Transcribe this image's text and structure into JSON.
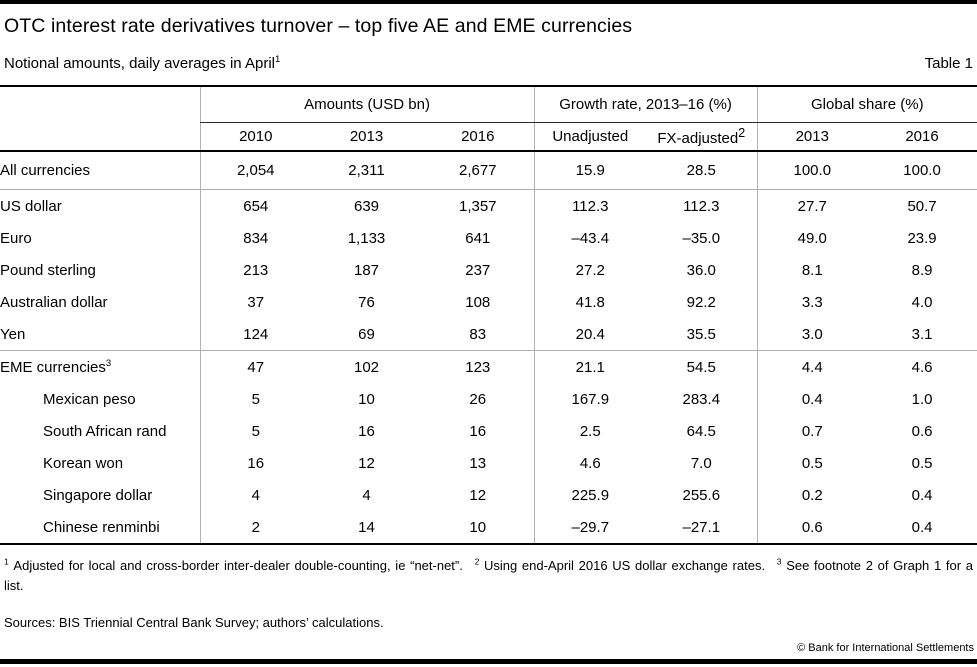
{
  "title": "OTC interest rate derivatives turnover – top five AE and EME currencies",
  "subtitle": "Notional amounts, daily averages in April",
  "subtitle_footnote_marker": "1",
  "table_label": "Table 1",
  "table": {
    "groups": [
      {
        "label": "Amounts (USD bn)",
        "cols": [
          {
            "label": "2010"
          },
          {
            "label": "2013"
          },
          {
            "label": "2016"
          }
        ]
      },
      {
        "label": "Growth rate, 2013–16 (%)",
        "cols": [
          {
            "label": "Unadjusted"
          },
          {
            "label": "FX-adjusted",
            "sup": "2"
          }
        ]
      },
      {
        "label": "Global share (%)",
        "cols": [
          {
            "label": "2013"
          },
          {
            "label": "2016"
          }
        ]
      }
    ],
    "rows": [
      {
        "label": "All currencies",
        "total": true,
        "rule_below": true,
        "values": [
          "2,054",
          "2,311",
          "2,677",
          "15.9",
          "28.5",
          "100.0",
          "100.0"
        ]
      },
      {
        "label": "US dollar",
        "values": [
          "654",
          "639",
          "1,357",
          "112.3",
          "112.3",
          "27.7",
          "50.7"
        ]
      },
      {
        "label": "Euro",
        "values": [
          "834",
          "1,133",
          "641",
          "–43.4",
          "–35.0",
          "49.0",
          "23.9"
        ]
      },
      {
        "label": "Pound sterling",
        "values": [
          "213",
          "187",
          "237",
          "27.2",
          "36.0",
          "8.1",
          "8.9"
        ]
      },
      {
        "label": "Australian dollar",
        "values": [
          "37",
          "76",
          "108",
          "41.8",
          "92.2",
          "3.3",
          "4.0"
        ]
      },
      {
        "label": "Yen",
        "rule_below": true,
        "values": [
          "124",
          "69",
          "83",
          "20.4",
          "35.5",
          "3.0",
          "3.1"
        ]
      },
      {
        "label": "EME currencies",
        "sup": "3",
        "values": [
          "47",
          "102",
          "123",
          "21.1",
          "54.5",
          "4.4",
          "4.6"
        ]
      },
      {
        "label": "Mexican peso",
        "indent": true,
        "values": [
          "5",
          "10",
          "26",
          "167.9",
          "283.4",
          "0.4",
          "1.0"
        ]
      },
      {
        "label": "South African rand",
        "indent": true,
        "values": [
          "5",
          "16",
          "16",
          "2.5",
          "64.5",
          "0.7",
          "0.6"
        ]
      },
      {
        "label": "Korean won",
        "indent": true,
        "values": [
          "16",
          "12",
          "13",
          "4.6",
          "7.0",
          "0.5",
          "0.5"
        ]
      },
      {
        "label": "Singapore dollar",
        "indent": true,
        "values": [
          "4",
          "4",
          "12",
          "225.9",
          "255.6",
          "0.2",
          "0.4"
        ]
      },
      {
        "label": "Chinese renminbi",
        "indent": true,
        "values": [
          "2",
          "14",
          "10",
          "–29.7",
          "–27.1",
          "0.6",
          "0.4"
        ]
      }
    ]
  },
  "footnotes": [
    {
      "marker": "1",
      "text": "Adjusted for local and cross-border inter-dealer double-counting, ie “net-net”."
    },
    {
      "marker": "2",
      "text": "Using end-April 2016 US dollar exchange rates."
    },
    {
      "marker": "3",
      "text": "See footnote 2 of Graph 1 for a list."
    }
  ],
  "sources": "Sources: BIS Triennial Central Bank Survey; authors’ calculations.",
  "copyright": "© Bank for International Settlements"
}
